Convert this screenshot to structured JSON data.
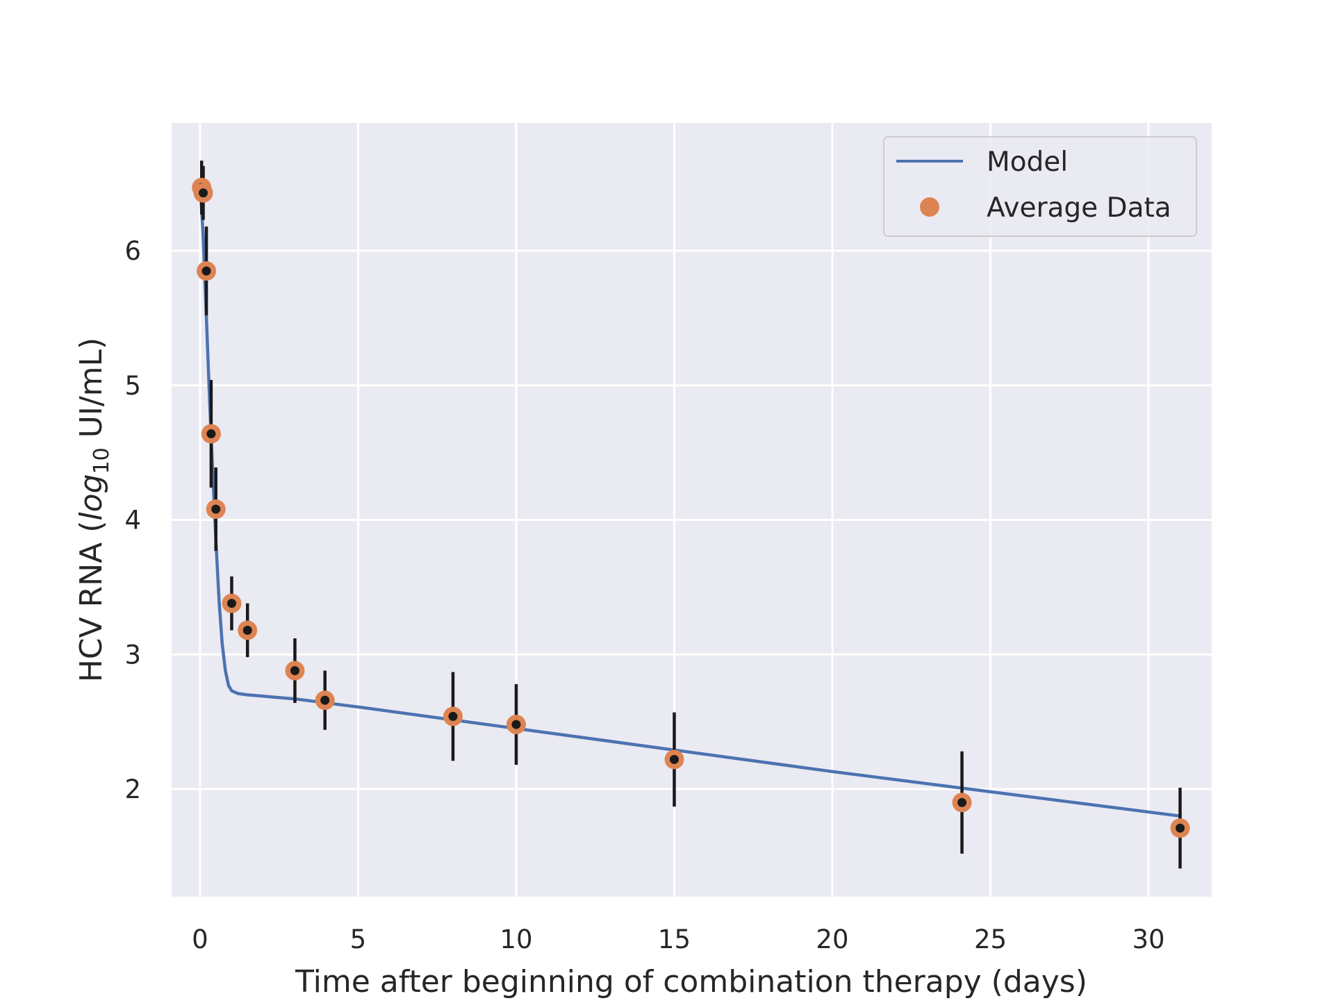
{
  "chart_data": {
    "type": "line",
    "title": "",
    "xlabel": "Time after beginning of combination therapy (days)",
    "ylabel": {
      "prefix": "HCV RNA (",
      "log": "log",
      "subscript": "10",
      "suffix": " UI/mL)"
    },
    "xlim": [
      -0.9,
      32
    ],
    "ylim": [
      1.2,
      6.95
    ],
    "xticks": [
      0,
      5,
      10,
      15,
      20,
      25,
      30
    ],
    "yticks": [
      2,
      3,
      4,
      5,
      6
    ],
    "grid": true,
    "legend_position": "top-right",
    "colors": {
      "background": "#eaeaf2",
      "grid": "#ffffff",
      "model_line": "#4c72b0",
      "data_marker": "#dd8452",
      "marker_center": "#1a1a1a",
      "error_bar": "#1a1a1a"
    },
    "series": [
      {
        "name": "Model",
        "kind": "line",
        "x": [
          0,
          0.1,
          0.2,
          0.3,
          0.4,
          0.5,
          0.6,
          0.7,
          0.8,
          0.9,
          1.0,
          1.2,
          1.5,
          2,
          3,
          5,
          10,
          15,
          20,
          25,
          31
        ],
        "y": [
          6.5,
          6.1,
          5.5,
          4.9,
          4.35,
          3.85,
          3.4,
          3.08,
          2.88,
          2.77,
          2.73,
          2.71,
          2.7,
          2.69,
          2.67,
          2.61,
          2.45,
          2.29,
          2.13,
          1.98,
          1.8
        ]
      },
      {
        "name": "Average Data",
        "kind": "scatter",
        "x": [
          0.05,
          0.1,
          0.2,
          0.35,
          0.5,
          1.0,
          1.5,
          3.0,
          3.95,
          8.0,
          10.0,
          15.0,
          24.1,
          31.0
        ],
        "y": [
          6.47,
          6.43,
          5.85,
          4.64,
          4.08,
          3.38,
          3.18,
          2.88,
          2.66,
          2.54,
          2.48,
          2.22,
          1.9,
          1.71
        ],
        "err": [
          0.2,
          0.2,
          0.33,
          0.4,
          0.31,
          0.2,
          0.2,
          0.24,
          0.22,
          0.33,
          0.3,
          0.35,
          0.38,
          0.3
        ]
      }
    ]
  }
}
